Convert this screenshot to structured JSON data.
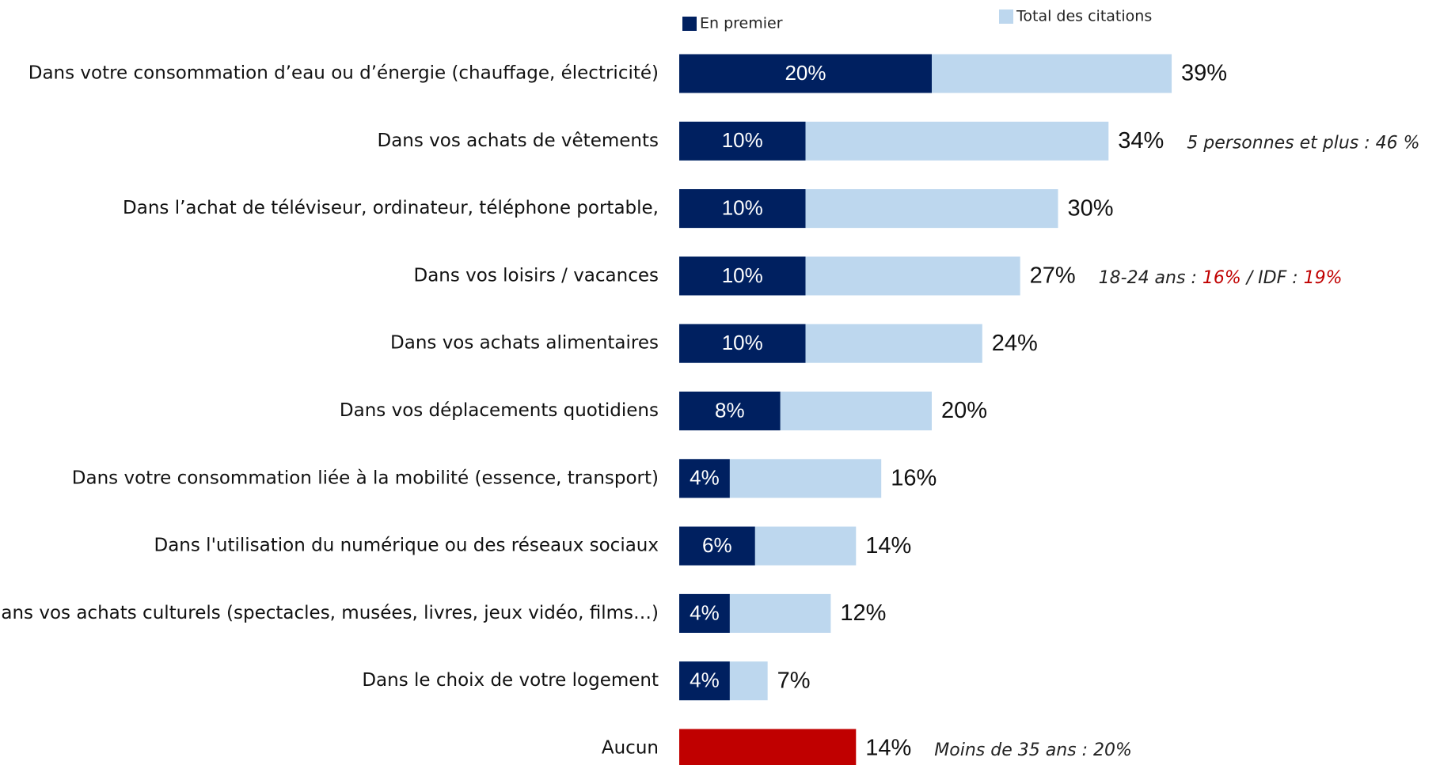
{
  "chart_data": {
    "type": "overlap-hbar",
    "categories": [
      "Dans votre consommation d’eau ou d’énergie (chauffage, électricité)",
      "Dans vos achats de vêtements",
      "Dans l’achat de téléviseur, ordinateur, téléphone portable,",
      "Dans vos loisirs / vacances",
      "Dans vos achats alimentaires",
      "Dans vos déplacements quotidiens",
      "Dans votre consommation liée à la mobilité (essence, transport)",
      "Dans l'utilisation du numérique ou des réseaux sociaux",
      "Dans vos achats culturels (spectacles, musées, livres, jeux vidéo, films…)",
      "Dans le choix de votre logement",
      "Aucun"
    ],
    "series": [
      {
        "name": "Total des citations",
        "color": "#bdd7ee",
        "colors": [
          "#bdd7ee",
          "#bdd7ee",
          "#bdd7ee",
          "#bdd7ee",
          "#bdd7ee",
          "#bdd7ee",
          "#bdd7ee",
          "#bdd7ee",
          "#bdd7ee",
          "#bdd7ee",
          "#c00000"
        ],
        "values": [
          39,
          34,
          30,
          27,
          24,
          20,
          16,
          14,
          12,
          7,
          14
        ],
        "value_labels": [
          "39%",
          "34%",
          "30%",
          "27%",
          "24%",
          "20%",
          "16%",
          "14%",
          "12%",
          "7%",
          "14%"
        ]
      },
      {
        "name": "En premier",
        "color": "#002060",
        "values": [
          20,
          10,
          10,
          10,
          10,
          8,
          4,
          6,
          4,
          4,
          null
        ],
        "value_labels": [
          "20%",
          "10%",
          "10%",
          "10%",
          "10%",
          "8%",
          "4%",
          "6%",
          "4%",
          "4%",
          null
        ]
      }
    ],
    "annotations": [
      null,
      [
        {
          "text": "5 personnes et plus : 46 %",
          "color": "#222222"
        }
      ],
      null,
      [
        {
          "text": "18-24 ans : ",
          "color": "#222222"
        },
        {
          "text": "16%",
          "color": "#c00000"
        },
        {
          "text": " / IDF : ",
          "color": "#222222"
        },
        {
          "text": "19%",
          "color": "#c00000"
        }
      ],
      null,
      null,
      null,
      null,
      null,
      null,
      [
        {
          "text": "Moins de 35 ans : 20%",
          "color": "#222222"
        }
      ]
    ],
    "xlim": [
      0,
      60
    ]
  }
}
